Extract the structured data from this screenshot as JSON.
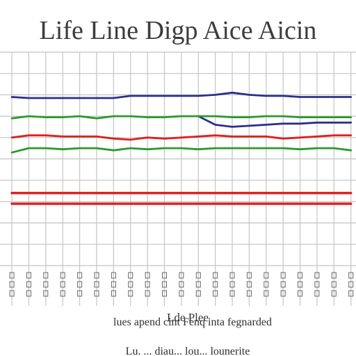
{
  "chart_data": {
    "type": "line",
    "title": "Life Line Digp Aice Aicin",
    "xlabel": "Lde Plee",
    "legend_text": "lues apend cint Fenq inta fegnarded",
    "legend_text_2": "Lu. ... diau... lou... lounerite",
    "x": [
      1,
      2,
      3,
      4,
      5,
      6,
      7,
      8,
      9,
      10,
      11,
      12,
      13,
      14,
      15,
      16,
      17,
      18,
      19,
      20,
      21
    ],
    "xlim": [
      0.3,
      21.3
    ],
    "ylim": [
      0,
      100
    ],
    "grid": true,
    "series": [
      {
        "color": "#2b2f8c",
        "values": [
          79,
          78.5,
          78.5,
          78.5,
          78.5,
          78.5,
          78.5,
          79.5,
          79.5,
          79.5,
          79.5,
          79.5,
          80,
          81,
          80,
          79.5,
          79.5,
          79,
          79,
          79,
          79
        ]
      },
      {
        "color": "#2b2f8c",
        "values": [
          null,
          null,
          null,
          null,
          null,
          null,
          null,
          null,
          null,
          null,
          null,
          70,
          66,
          65,
          65.5,
          66,
          66.5,
          66.5,
          67,
          67,
          67
        ]
      },
      {
        "color": "#2a9a2a",
        "values": [
          69,
          70,
          69.5,
          69.5,
          70,
          69,
          70,
          70,
          69.5,
          69.5,
          70,
          70,
          70,
          69.5,
          69.5,
          70,
          70,
          69.5,
          69.5,
          69.5,
          69.5
        ]
      },
      {
        "color": "#e02020",
        "values": [
          60,
          61,
          61,
          60.5,
          60.5,
          60.5,
          59.5,
          59,
          60,
          59.5,
          60,
          60.5,
          61,
          60.5,
          60.5,
          60.5,
          59.5,
          60,
          60.5,
          61,
          61
        ]
      },
      {
        "color": "#2a9a2a",
        "values": [
          53,
          55,
          55,
          54.5,
          55,
          55,
          54,
          55,
          54.5,
          55,
          55,
          54.5,
          55,
          55,
          55,
          55,
          55,
          54.5,
          55,
          55,
          54
        ]
      },
      {
        "color": "#e02020",
        "values": [
          34,
          34,
          34,
          34,
          34,
          34,
          34,
          34,
          34,
          34,
          34,
          34,
          34,
          34,
          34,
          34,
          34,
          34,
          34,
          34,
          34
        ]
      },
      {
        "color": "#e02020",
        "values": [
          29,
          29,
          29,
          29,
          29,
          29,
          29,
          29,
          29,
          29,
          29,
          29,
          29,
          29,
          29,
          29,
          29,
          29,
          29,
          29,
          29
        ]
      }
    ]
  },
  "colors": {
    "grid": "#c4c4c4",
    "axis": "#666666"
  }
}
